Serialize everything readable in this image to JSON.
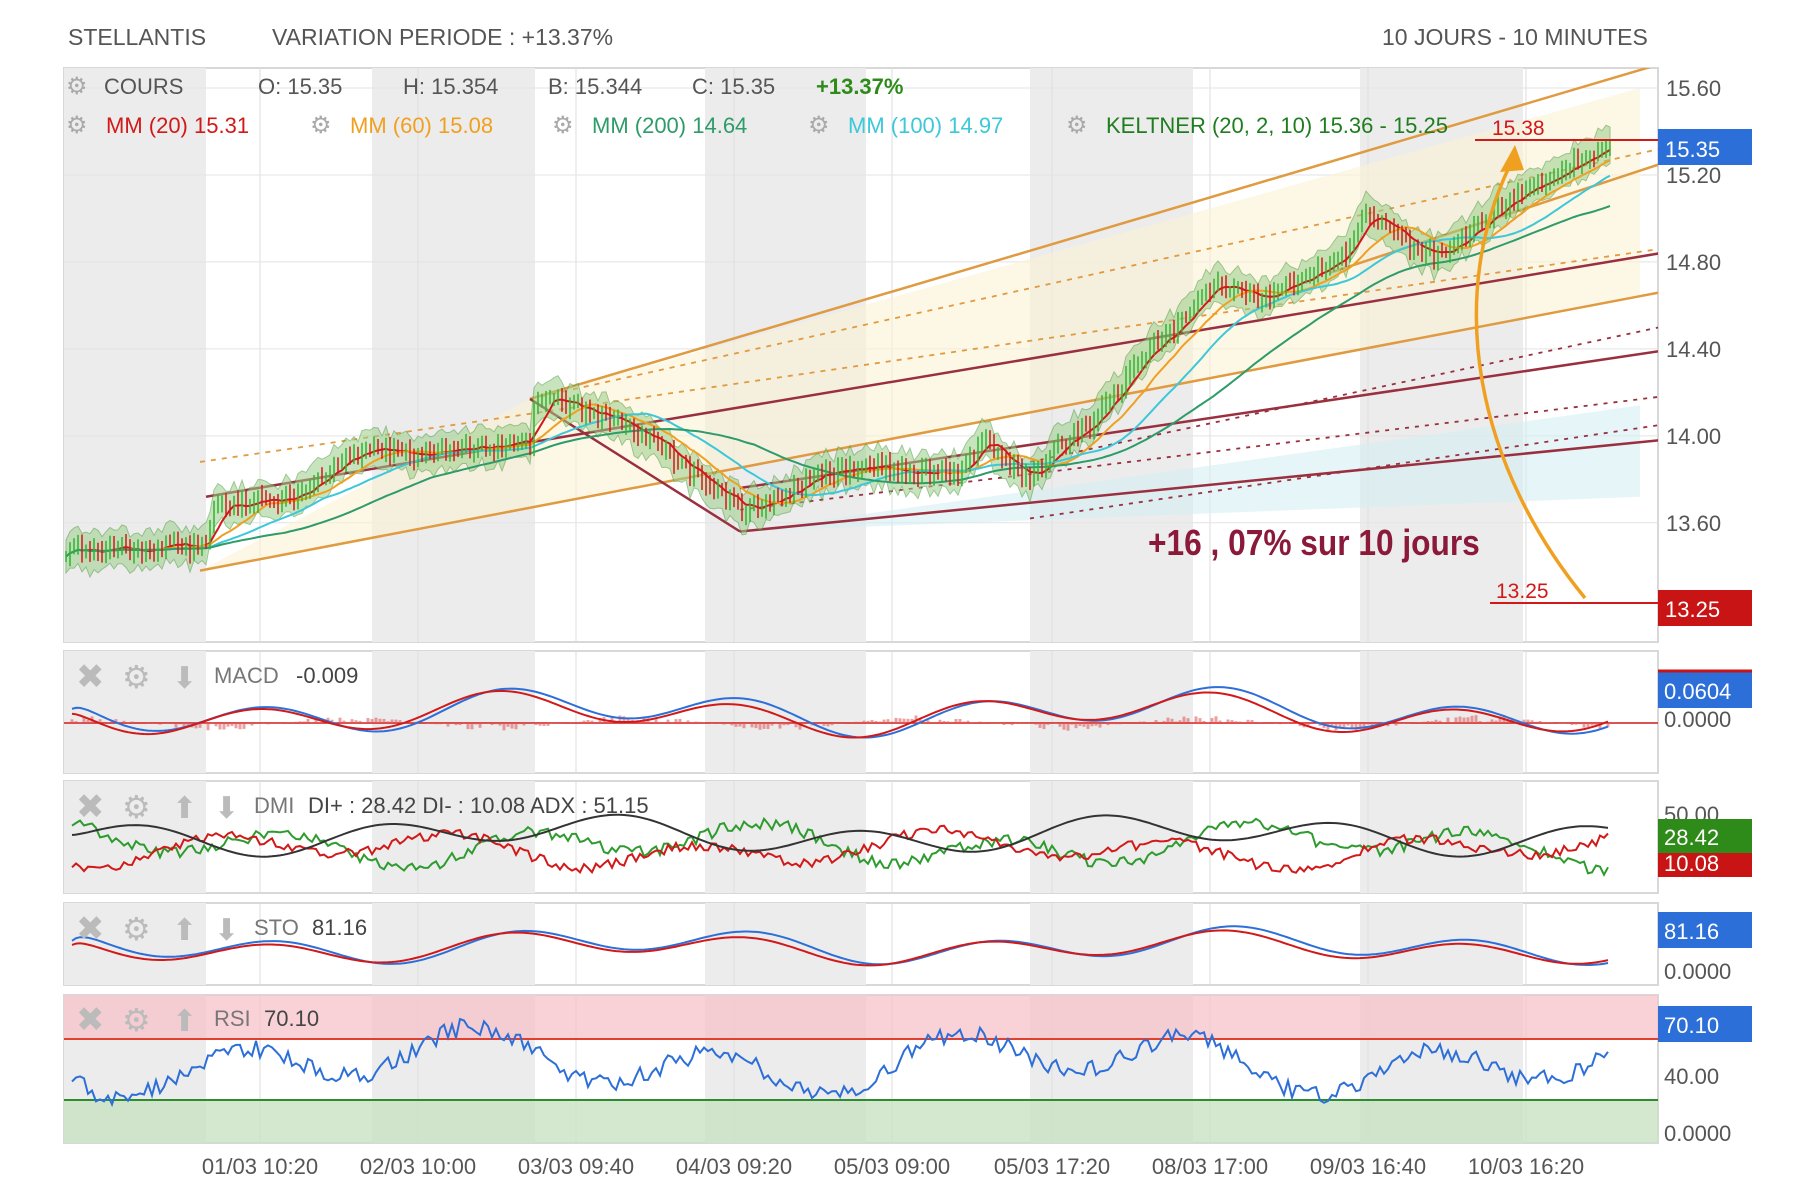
{
  "header": {
    "symbol": "STELLANTIS",
    "variation": "VARIATION PERIODE : +13.37%",
    "period": "10 JOURS - 10 MINUTES"
  },
  "main_panel": {
    "legend_row1": [
      {
        "text": "COURS",
        "color": "#555555",
        "gear": true
      },
      {
        "text": "O: 15.35",
        "color": "#555555"
      },
      {
        "text": "H: 15.354",
        "color": "#555555"
      },
      {
        "text": "B: 15.344",
        "color": "#555555"
      },
      {
        "text": "C: 15.35",
        "color": "#555555"
      },
      {
        "text": "+13.37%",
        "color": "#2e8b1a",
        "bold": true
      }
    ],
    "legend_row2": [
      {
        "name": "MM (20)",
        "value": "15.31",
        "color": "#d21919"
      },
      {
        "name": "MM (60)",
        "value": "15.08",
        "color": "#f0a020"
      },
      {
        "name": "MM (200)",
        "value": "14.64",
        "color": "#2e9b6a"
      },
      {
        "name": "MM (100)",
        "value": "14.97",
        "color": "#3cc8d8"
      },
      {
        "name": "KELTNER (20, 2, 10)",
        "value": "15.36 - 15.25",
        "color": "#1f7d1f"
      }
    ],
    "y_ticks": [
      "15.60",
      "15.20",
      "14.80",
      "14.40",
      "14.00",
      "13.60"
    ],
    "last_price_badge": "15.35",
    "support_badge": "13.25",
    "target_label": "15.38",
    "start_label": "13.25",
    "annotation": "+16 , 07%   sur 10 jours"
  },
  "chart_data": {
    "type": "line",
    "title": "STELLANTIS",
    "x": [
      "01/03 10:20",
      "02/03 10:00",
      "03/03 09:40",
      "04/03 09:20",
      "05/03 09:00",
      "05/03 17:20",
      "08/03 17:00",
      "09/03 16:40",
      "10/03 16:20"
    ],
    "ylim": [
      13.25,
      15.6
    ],
    "series": [
      {
        "name": "COURS",
        "values": [
          13.45,
          13.68,
          14.1,
          13.7,
          13.75,
          14.0,
          14.65,
          14.9,
          15.35
        ]
      },
      {
        "name": "MM (20)",
        "values": [
          13.42,
          13.62,
          14.0,
          13.72,
          13.76,
          13.95,
          14.55,
          14.85,
          15.31
        ]
      },
      {
        "name": "MM (60)",
        "values": [
          13.38,
          13.56,
          13.9,
          13.8,
          13.74,
          13.88,
          14.4,
          14.75,
          15.08
        ]
      },
      {
        "name": "MM (200)",
        "values": [
          13.4,
          13.5,
          13.7,
          13.74,
          13.76,
          13.84,
          14.05,
          14.3,
          14.64
        ]
      },
      {
        "name": "MM (100)",
        "values": [
          13.42,
          13.58,
          13.82,
          13.78,
          13.76,
          13.86,
          14.2,
          14.55,
          14.97
        ]
      }
    ],
    "last_value": 15.35
  },
  "indicators": {
    "macd": {
      "label": "MACD",
      "value": "-0.009",
      "badge": "0.0604",
      "tick": "0.0000"
    },
    "dmi": {
      "label": "DMI",
      "value": "DI+ : 28.42 DI- : 10.08 ADX : 51.15",
      "badge_plus": "28.42",
      "badge_minus": "10.08",
      "ticks": [
        "50.00",
        "0.0000"
      ]
    },
    "sto": {
      "label": "STO",
      "value": "81.16",
      "badge": "81.16",
      "tick": "0.0000"
    },
    "rsi": {
      "label": "RSI",
      "value": "70.10",
      "badge": "70.10",
      "ticks": [
        "40.00",
        "0.0000"
      ]
    }
  },
  "x_labels": [
    "01/03 10:20",
    "02/03 10:00",
    "03/03 09:40",
    "04/03 09:20",
    "05/03 09:00",
    "05/03 17:20",
    "08/03 17:00",
    "09/03 16:40",
    "10/03 16:20"
  ],
  "colors": {
    "mm20": "#d21919",
    "mm60": "#f0a020",
    "mm200": "#2e9b6a",
    "mm100": "#3cc8d8",
    "keltner": "#1f7d1f",
    "blue_badge": "#2d6fd8",
    "red_badge": "#c81414",
    "green_badge": "#2e8b1a",
    "channel_orange": "#e09a40",
    "channel_maroon": "#9a2f3f",
    "annotation": "#8b1a3a"
  }
}
